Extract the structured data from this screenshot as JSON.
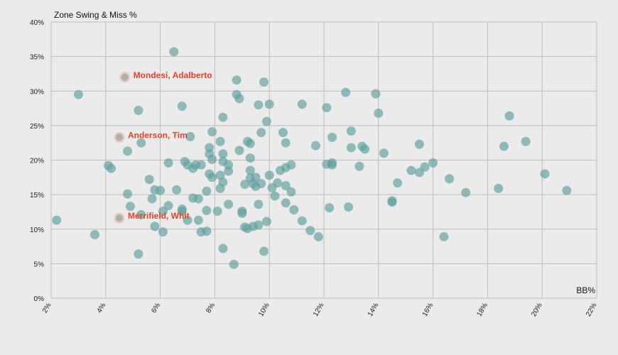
{
  "chart_data": {
    "type": "scatter",
    "title": "",
    "xlabel": "BB%",
    "ylabel": "Zone Swing & Miss %",
    "xlim": [
      2,
      22
    ],
    "ylim": [
      0,
      40
    ],
    "x_ticks": [
      "2%",
      "4%",
      "6%",
      "8%",
      "10%",
      "12%",
      "14%",
      "16%",
      "18%",
      "20%",
      "22%"
    ],
    "y_ticks": [
      "0%",
      "5%",
      "10%",
      "15%",
      "20%",
      "25%",
      "30%",
      "35%",
      "40%"
    ],
    "grid": true,
    "point_color": "#5e9e9e",
    "highlight_color": "#e8402a",
    "highlights": [
      {
        "label": "Mondesi, Adalberto",
        "x": 4.7,
        "y": 32.0
      },
      {
        "label": "Anderson, Tim",
        "x": 4.5,
        "y": 23.3
      },
      {
        "label": "Merrifield, Whit",
        "x": 4.5,
        "y": 11.6
      }
    ],
    "points": [
      [
        2.2,
        11.3
      ],
      [
        3.0,
        29.5
      ],
      [
        3.6,
        9.2
      ],
      [
        4.1,
        19.2
      ],
      [
        4.2,
        18.8
      ],
      [
        4.8,
        21.3
      ],
      [
        4.8,
        15.1
      ],
      [
        4.9,
        13.3
      ],
      [
        5.2,
        27.2
      ],
      [
        5.2,
        6.4
      ],
      [
        5.3,
        22.5
      ],
      [
        5.3,
        12.1
      ],
      [
        5.6,
        17.2
      ],
      [
        5.7,
        14.4
      ],
      [
        5.8,
        15.7
      ],
      [
        5.8,
        10.4
      ],
      [
        6.0,
        15.6
      ],
      [
        6.1,
        12.6
      ],
      [
        6.1,
        9.6
      ],
      [
        6.3,
        19.6
      ],
      [
        6.3,
        13.4
      ],
      [
        6.5,
        35.7
      ],
      [
        6.6,
        15.7
      ],
      [
        6.8,
        27.8
      ],
      [
        6.8,
        12.9
      ],
      [
        6.8,
        12.6
      ],
      [
        6.9,
        19.8
      ],
      [
        7.0,
        19.3
      ],
      [
        7.0,
        11.3
      ],
      [
        7.1,
        23.4
      ],
      [
        7.2,
        18.8
      ],
      [
        7.2,
        14.5
      ],
      [
        7.3,
        19.3
      ],
      [
        7.4,
        14.4
      ],
      [
        7.4,
        11.3
      ],
      [
        7.5,
        19.3
      ],
      [
        7.5,
        9.6
      ],
      [
        7.7,
        15.5
      ],
      [
        7.7,
        12.7
      ],
      [
        7.7,
        9.7
      ],
      [
        7.8,
        21.8
      ],
      [
        7.8,
        20.9
      ],
      [
        7.8,
        18.0
      ],
      [
        7.9,
        24.1
      ],
      [
        7.9,
        20.1
      ],
      [
        7.9,
        17.5
      ],
      [
        8.1,
        12.6
      ],
      [
        8.2,
        22.7
      ],
      [
        8.2,
        17.8
      ],
      [
        8.2,
        15.9
      ],
      [
        8.3,
        26.2
      ],
      [
        8.3,
        20.9
      ],
      [
        8.3,
        19.8
      ],
      [
        8.3,
        16.8
      ],
      [
        8.3,
        7.2
      ],
      [
        8.5,
        19.3
      ],
      [
        8.5,
        18.4
      ],
      [
        8.5,
        13.6
      ],
      [
        8.7,
        4.9
      ],
      [
        8.8,
        31.6
      ],
      [
        8.8,
        29.5
      ],
      [
        8.9,
        28.9
      ],
      [
        8.9,
        21.4
      ],
      [
        9.0,
        12.6
      ],
      [
        9.0,
        12.3
      ],
      [
        9.1,
        16.5
      ],
      [
        9.1,
        10.3
      ],
      [
        9.2,
        22.7
      ],
      [
        9.2,
        10.1
      ],
      [
        9.3,
        22.4
      ],
      [
        9.3,
        20.3
      ],
      [
        9.3,
        18.5
      ],
      [
        9.3,
        17.4
      ],
      [
        9.4,
        16.6
      ],
      [
        9.4,
        10.4
      ],
      [
        9.5,
        17.5
      ],
      [
        9.5,
        16.2
      ],
      [
        9.6,
        28.0
      ],
      [
        9.6,
        13.6
      ],
      [
        9.6,
        10.6
      ],
      [
        9.7,
        24.0
      ],
      [
        9.7,
        16.6
      ],
      [
        9.8,
        31.3
      ],
      [
        9.8,
        6.8
      ],
      [
        9.9,
        25.6
      ],
      [
        9.9,
        11.1
      ],
      [
        10.0,
        28.1
      ],
      [
        10.0,
        17.8
      ],
      [
        10.1,
        16.0
      ],
      [
        10.2,
        14.8
      ],
      [
        10.3,
        16.7
      ],
      [
        10.4,
        18.5
      ],
      [
        10.5,
        24.0
      ],
      [
        10.6,
        22.5
      ],
      [
        10.6,
        18.9
      ],
      [
        10.6,
        16.3
      ],
      [
        10.6,
        13.8
      ],
      [
        10.8,
        19.3
      ],
      [
        10.8,
        15.4
      ],
      [
        10.9,
        12.8
      ],
      [
        11.2,
        28.1
      ],
      [
        11.2,
        11.2
      ],
      [
        11.5,
        9.8
      ],
      [
        11.7,
        22.1
      ],
      [
        11.8,
        8.9
      ],
      [
        12.1,
        27.6
      ],
      [
        12.1,
        19.4
      ],
      [
        12.2,
        13.1
      ],
      [
        12.3,
        23.3
      ],
      [
        12.3,
        19.6
      ],
      [
        12.3,
        19.3
      ],
      [
        12.8,
        29.8
      ],
      [
        12.9,
        13.2
      ],
      [
        13.0,
        24.2
      ],
      [
        13.0,
        21.8
      ],
      [
        13.3,
        19.1
      ],
      [
        13.4,
        22.0
      ],
      [
        13.5,
        21.6
      ],
      [
        13.9,
        29.6
      ],
      [
        14.0,
        26.8
      ],
      [
        14.2,
        21.0
      ],
      [
        14.5,
        14.1
      ],
      [
        14.5,
        13.9
      ],
      [
        14.7,
        16.7
      ],
      [
        15.2,
        18.5
      ],
      [
        15.5,
        22.3
      ],
      [
        15.5,
        18.2
      ],
      [
        15.7,
        19.0
      ],
      [
        16.0,
        19.6
      ],
      [
        16.4,
        8.9
      ],
      [
        16.6,
        17.3
      ],
      [
        17.2,
        15.3
      ],
      [
        18.4,
        15.9
      ],
      [
        18.6,
        22.0
      ],
      [
        18.8,
        26.4
      ],
      [
        19.4,
        22.7
      ],
      [
        20.1,
        18.0
      ],
      [
        20.9,
        15.6
      ]
    ]
  }
}
